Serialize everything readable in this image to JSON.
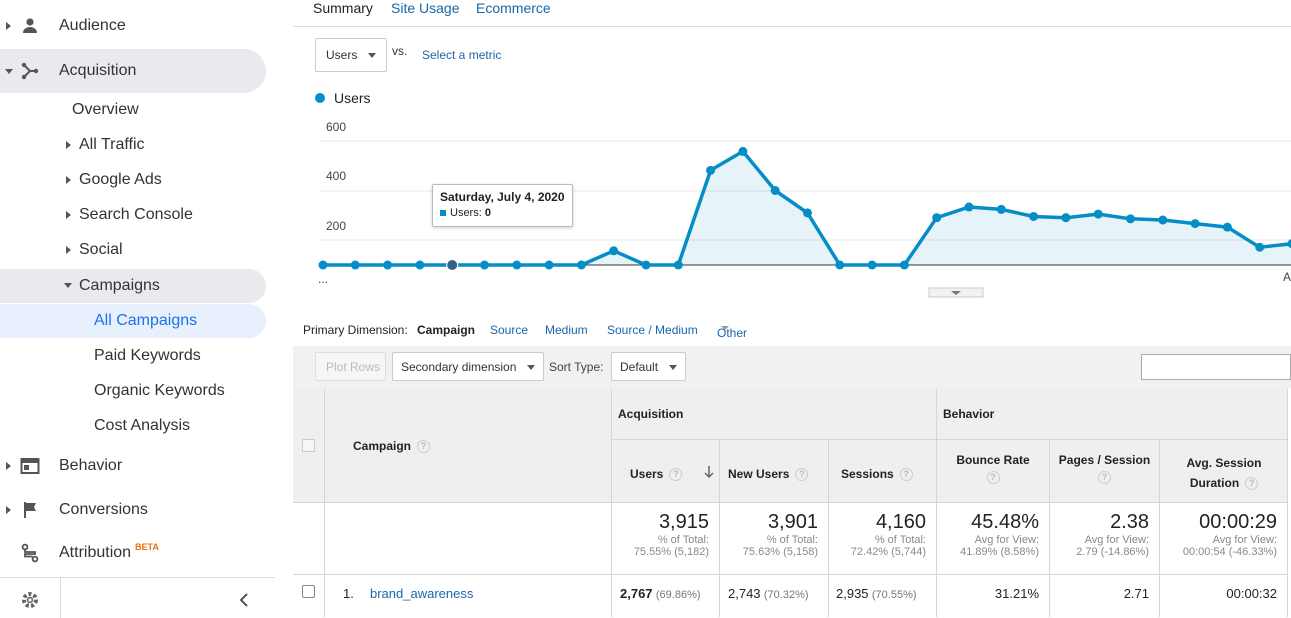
{
  "sidebar": {
    "items": [
      {
        "label": "Audience"
      },
      {
        "label": "Acquisition"
      },
      {
        "label": "Overview"
      },
      {
        "label": "All Traffic"
      },
      {
        "label": "Google Ads"
      },
      {
        "label": "Search Console"
      },
      {
        "label": "Social"
      },
      {
        "label": "Campaigns"
      },
      {
        "label": "All Campaigns"
      },
      {
        "label": "Paid Keywords"
      },
      {
        "label": "Organic Keywords"
      },
      {
        "label": "Cost Analysis"
      },
      {
        "label": "Behavior"
      },
      {
        "label": "Conversions"
      },
      {
        "label": "Attribution",
        "badge": "BETA"
      }
    ]
  },
  "tabs": [
    "Summary",
    "Site Usage",
    "Ecommerce"
  ],
  "metric_selector": {
    "value": "Users",
    "vs": "vs.",
    "select_link": "Select a metric"
  },
  "chart": {
    "legend": "Users",
    "y_ticks": [
      "600",
      "400",
      "200"
    ],
    "x_left_label": "...",
    "x_right_label": "A"
  },
  "chart_data": {
    "type": "area",
    "series": [
      {
        "name": "Users",
        "values": [
          0,
          0,
          0,
          0,
          0,
          0,
          0,
          0,
          0,
          60,
          0,
          0,
          400,
          480,
          315,
          220,
          0,
          0,
          0,
          200,
          245,
          235,
          205,
          200,
          215,
          195,
          190,
          175,
          160,
          75,
          90
        ]
      }
    ],
    "ylim": [
      0,
      600
    ],
    "grid": true,
    "color": "#058dc7"
  },
  "tooltip": {
    "title": "Saturday, July 4, 2020",
    "row_label": "Users:",
    "row_value": "0"
  },
  "primary_dimension": {
    "label": "Primary Dimension:",
    "active": "Campaign",
    "options": [
      "Source",
      "Medium",
      "Source / Medium",
      "Other"
    ]
  },
  "toolbar": {
    "plot_rows": "Plot Rows",
    "secondary_dimension": "Secondary dimension",
    "sort_type_label": "Sort Type:",
    "sort_type_value": "Default"
  },
  "table": {
    "campaign_header": "Campaign",
    "acquisition_header": "Acquisition",
    "behavior_header": "Behavior",
    "columns": [
      "Users",
      "New Users",
      "Sessions",
      "Bounce Rate",
      "Pages / Session",
      "Avg. Session Duration"
    ],
    "totals": [
      {
        "value": "3,915",
        "line1": "% of Total:",
        "line2": "75.55% (5,182)"
      },
      {
        "value": "3,901",
        "line1": "% of Total:",
        "line2": "75.63% (5,158)"
      },
      {
        "value": "4,160",
        "line1": "% of Total:",
        "line2": "72.42% (5,744)"
      },
      {
        "value": "45.48%",
        "line1": "Avg for View:",
        "line2": "41.89% (8.58%)"
      },
      {
        "value": "2.38",
        "line1": "Avg for View:",
        "line2": "2.79 (-14.86%)"
      },
      {
        "value": "00:00:29",
        "line1": "Avg for View:",
        "line2": "00:00:54 (-46.33%)"
      }
    ],
    "rows": [
      {
        "index": "1.",
        "campaign": "brand_awareness",
        "users": "2,767",
        "users_pct": "(69.86%)",
        "new_users": "2,743",
        "new_users_pct": "(70.32%)",
        "sessions": "2,935",
        "sessions_pct": "(70.55%)",
        "bounce_rate": "31.21%",
        "pages_session": "2.71",
        "avg_duration": "00:00:32"
      }
    ]
  }
}
